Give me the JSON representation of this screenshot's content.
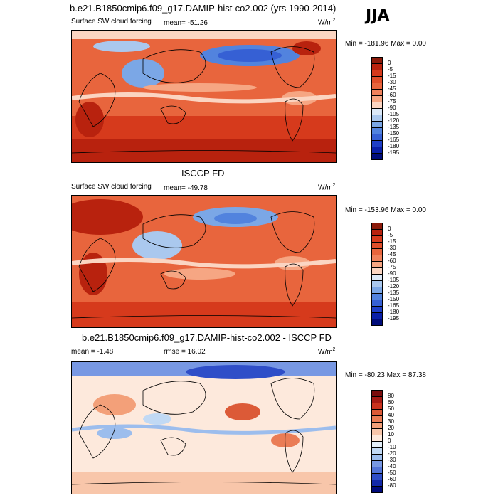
{
  "season": "JJA",
  "panels": [
    {
      "title": "b.e21.B1850cmip6.f09_g17.DAMIP-hist-co2.002 (yrs 1990-2014)",
      "left_label": "Surface SW cloud forcing",
      "center_label": "mean= -51.26",
      "units": "W/m",
      "units_sup": "2",
      "minmax": "Min = -181.96 Max =   0.00",
      "colorbar_labels": [
        "0",
        "-5",
        "-15",
        "-30",
        "-45",
        "-60",
        "-75",
        "-90",
        "-105",
        "-120",
        "-135",
        "-150",
        "-165",
        "-180",
        "-195"
      ]
    },
    {
      "title": "ISCCP FD",
      "left_label": "Surface SW cloud forcing",
      "center_label": "mean= -49.78",
      "units": "W/m",
      "units_sup": "2",
      "minmax": "Min = -153.96 Max =   0.00",
      "colorbar_labels": [
        "0",
        "-5",
        "-15",
        "-30",
        "-45",
        "-60",
        "-75",
        "-90",
        "-105",
        "-120",
        "-135",
        "-150",
        "-165",
        "-180",
        "-195"
      ]
    },
    {
      "title": "b.e21.B1850cmip6.f09_g17.DAMIP-hist-co2.002 - ISCCP FD",
      "left_label": "mean =  -1.48",
      "center_label": "rmse =  16.02",
      "units": "W/m",
      "units_sup": "2",
      "minmax": "Min = -80.23 Max =  87.38",
      "colorbar_labels": [
        "80",
        "60",
        "50",
        "40",
        "30",
        "20",
        "10",
        "0",
        "-10",
        "-20",
        "-30",
        "-40",
        "-50",
        "-60",
        "-80"
      ]
    }
  ],
  "colors": {
    "sw_scale": [
      "#8b1a0a",
      "#b8220e",
      "#d63a1c",
      "#e04e2a",
      "#e8653d",
      "#f0825c",
      "#f6a683",
      "#fbd5c2",
      "#dbe8f7",
      "#aac8ee",
      "#7ba7e6",
      "#5283de",
      "#3660d4",
      "#1f3fc7",
      "#0a1fa8",
      "#000c7a"
    ],
    "diff_scale": [
      "#7a0c0c",
      "#a51a14",
      "#c8321e",
      "#dc5a37",
      "#ea7c55",
      "#f3a079",
      "#f8c6aa",
      "#fde9dc",
      "#e3effa",
      "#c1d9f4",
      "#9cbded",
      "#7898e3",
      "#5274d8",
      "#2f4ec8",
      "#1228a8",
      "#000a7a"
    ]
  }
}
